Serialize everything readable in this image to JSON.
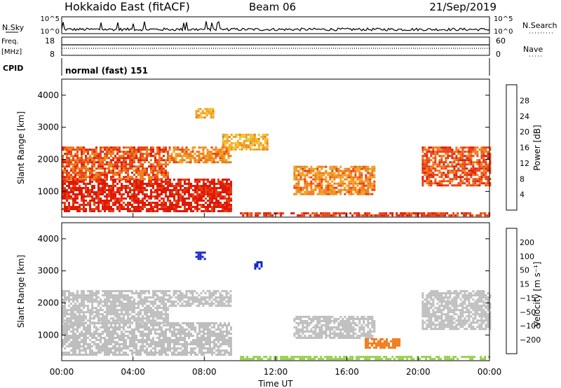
{
  "header": {
    "title": "Hokkaido East (fitACF)",
    "beam": "Beam 06",
    "date": "21/Sep/2019"
  },
  "top_panels": {
    "nsky_label": "N.Sky",
    "nsky_ticks": [
      "10^5",
      "10^0"
    ],
    "nsearch_label": "N.Search",
    "nsearch_ticks": [
      "10^5",
      "10^0"
    ],
    "freq_label": "Freq.",
    "freq_unit": "[MHz]",
    "freq_ticks": [
      "18",
      "8"
    ],
    "nave_label": "Nave",
    "nave_ticks": [
      "60",
      "0"
    ],
    "cpid_label": "CPID",
    "cpid_value": "normal (fast) 151"
  },
  "colors": {
    "power": [
      "#1f2ee0",
      "#2a4aa8",
      "#3a8a62",
      "#5fb24a",
      "#f2c230",
      "#f0a020",
      "#ef7a18",
      "#e84010",
      "#e01808"
    ],
    "velocity": [
      "#e81808",
      "#f04a10",
      "#f07a18",
      "#f2b030",
      "#c8c8c8",
      "#96d04a",
      "#5aa84a",
      "#3a6aa0",
      "#1a2ad0"
    ],
    "ground_scatter": "#bebebe"
  },
  "x_axis": {
    "label": "Time UT",
    "ticks": [
      "00:00",
      "04:00",
      "08:00",
      "12:00",
      "16:00",
      "20:00",
      "00:00"
    ]
  },
  "chart_data": [
    {
      "type": "heatmap",
      "name": "power",
      "ylabel": "Slant Range [km]",
      "yticks": [
        "1000",
        "2000",
        "3000",
        "4000"
      ],
      "ylim": [
        200,
        4500
      ],
      "xlim_hours": [
        0,
        24
      ],
      "colorbar": {
        "label": "Power [dB]",
        "ticks": [
          "4",
          "8",
          "12",
          "16",
          "20",
          "24",
          "28"
        ],
        "range": [
          0,
          32
        ]
      },
      "regions": [
        {
          "t": [
            0.0,
            9.5
          ],
          "r": [
            400,
            1400
          ],
          "value": 30
        },
        {
          "t": [
            0.0,
            6.0
          ],
          "r": [
            1400,
            2400
          ],
          "value": 26
        },
        {
          "t": [
            6.0,
            9.5
          ],
          "r": [
            1900,
            2400
          ],
          "value": 22
        },
        {
          "t": [
            9.0,
            11.5
          ],
          "r": [
            2300,
            2800
          ],
          "value": 18
        },
        {
          "t": [
            7.5,
            8.5
          ],
          "r": [
            3300,
            3600
          ],
          "value": 18
        },
        {
          "t": [
            13.0,
            17.5
          ],
          "r": [
            900,
            1800
          ],
          "value": 22
        },
        {
          "t": [
            10.0,
            24.0
          ],
          "r": [
            250,
            350
          ],
          "value": 28
        },
        {
          "t": [
            20.2,
            24.0
          ],
          "r": [
            1200,
            2400
          ],
          "value": 26
        }
      ]
    },
    {
      "type": "heatmap",
      "name": "velocity",
      "ylabel": "Slant Range [km]",
      "yticks": [
        "1000",
        "2000",
        "3000",
        "4000"
      ],
      "ylim": [
        200,
        4500
      ],
      "xlim_hours": [
        0,
        24
      ],
      "colorbar": {
        "label": "Velocity [m s⁻¹]",
        "ticks": [
          "200",
          "100",
          "50",
          "15",
          "−15",
          "−50",
          "−100",
          "−200"
        ],
        "range": [
          -250,
          250
        ]
      },
      "regions": [
        {
          "t": [
            0.0,
            9.5
          ],
          "r": [
            400,
            1400
          ],
          "value": 0
        },
        {
          "t": [
            0.0,
            6.0
          ],
          "r": [
            1400,
            2400
          ],
          "value": 0
        },
        {
          "t": [
            6.0,
            9.5
          ],
          "r": [
            1900,
            2400
          ],
          "value": 0
        },
        {
          "t": [
            13.0,
            17.5
          ],
          "r": [
            900,
            1600
          ],
          "value": 0
        },
        {
          "t": [
            20.2,
            24.0
          ],
          "r": [
            1200,
            2400
          ],
          "value": 0
        },
        {
          "t": [
            10.0,
            24.0
          ],
          "r": [
            250,
            350
          ],
          "value": 40
        },
        {
          "t": [
            7.5,
            8.0
          ],
          "r": [
            3400,
            3600
          ],
          "value": 220
        },
        {
          "t": [
            10.8,
            11.2
          ],
          "r": [
            3100,
            3300
          ],
          "value": 220
        },
        {
          "t": [
            17.0,
            19.0
          ],
          "r": [
            600,
            900
          ],
          "value": -60
        }
      ]
    }
  ]
}
